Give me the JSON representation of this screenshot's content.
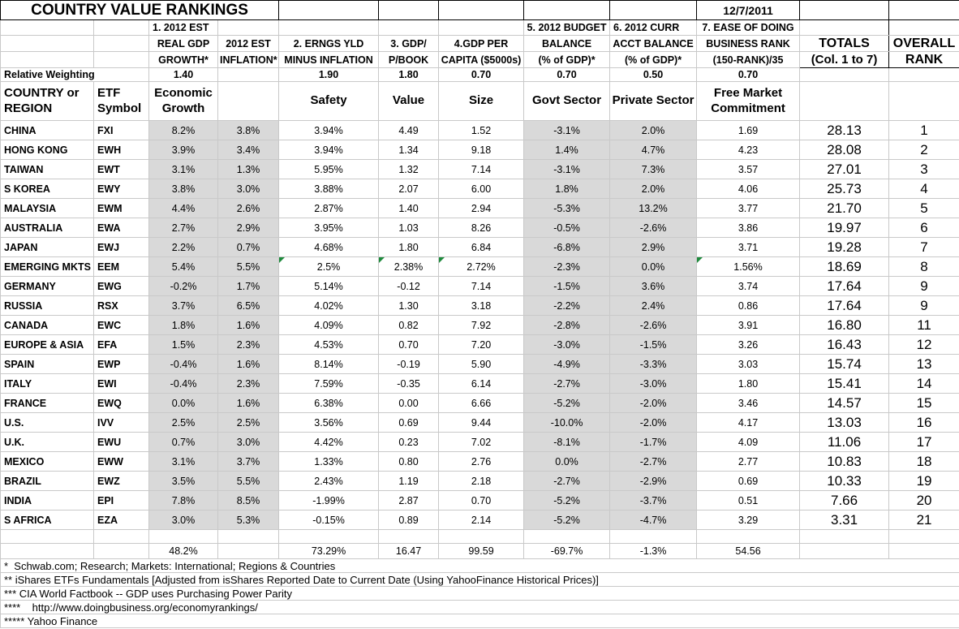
{
  "title": "COUNTRY VALUE RANKINGS",
  "date": "12/7/2011",
  "headers": {
    "group1": "1. 2012 EST",
    "group5": "5. 2012 BUDGET",
    "group6": "6. 2012 CURR",
    "group7": "7. EASE OF DOING",
    "line1": [
      "REAL GDP",
      "2012 EST",
      "2. ERNGS YLD",
      "3. GDP/",
      "4.GDP PER",
      "BALANCE",
      "ACCT BALANCE",
      "BUSINESS RANK",
      "TOTALS",
      "OVERALL"
    ],
    "line2": [
      "GROWTH*",
      "INFLATION*",
      "MINUS INFLATION",
      "P/BOOK",
      "CAPITA ($5000s)",
      "(% of GDP)*",
      "(% of GDP)*",
      "(150-RANK)/35",
      "(Col. 1 to 7)",
      "RANK"
    ]
  },
  "weights": {
    "label": "Relative Weighting",
    "values": [
      "1.40",
      "",
      "1.90",
      "1.80",
      "0.70",
      "0.70",
      "0.50",
      "0.70"
    ]
  },
  "categories": {
    "country": "COUNTRY or REGION",
    "etf": "ETF Symbol",
    "col1": "Economic Growth",
    "col2": "",
    "col3": "Safety",
    "col4": "Value",
    "col5": "Size",
    "col6": "Govt Sector",
    "col7": "Private Sector",
    "col8": "Free Market Commitment"
  },
  "rows": [
    {
      "country": "CHINA",
      "etf": "FXI",
      "values": [
        "8.2%",
        "3.8%",
        "3.94%",
        "4.49",
        "1.52",
        "-3.1%",
        "2.0%",
        "1.69"
      ],
      "total": "28.13",
      "rank": "1",
      "flags": []
    },
    {
      "country": "HONG KONG",
      "etf": "EWH",
      "values": [
        "3.9%",
        "3.4%",
        "3.94%",
        "1.34",
        "9.18",
        "1.4%",
        "4.7%",
        "4.23"
      ],
      "total": "28.08",
      "rank": "2",
      "flags": []
    },
    {
      "country": "TAIWAN",
      "etf": "EWT",
      "values": [
        "3.1%",
        "1.3%",
        "5.95%",
        "1.32",
        "7.14",
        "-3.1%",
        "7.3%",
        "3.57"
      ],
      "total": "27.01",
      "rank": "3",
      "flags": []
    },
    {
      "country": "S KOREA",
      "etf": "EWY",
      "values": [
        "3.8%",
        "3.0%",
        "3.88%",
        "2.07",
        "6.00",
        "1.8%",
        "2.0%",
        "4.06"
      ],
      "total": "25.73",
      "rank": "4",
      "flags": []
    },
    {
      "country": "MALAYSIA",
      "etf": "EWM",
      "values": [
        "4.4%",
        "2.6%",
        "2.87%",
        "1.40",
        "2.94",
        "-5.3%",
        "13.2%",
        "3.77"
      ],
      "total": "21.70",
      "rank": "5",
      "flags": []
    },
    {
      "country": "AUSTRALIA",
      "etf": "EWA",
      "values": [
        "2.7%",
        "2.9%",
        "3.95%",
        "1.03",
        "8.26",
        "-0.5%",
        "-2.6%",
        "3.86"
      ],
      "total": "19.97",
      "rank": "6",
      "flags": []
    },
    {
      "country": "JAPAN",
      "etf": "EWJ",
      "values": [
        "2.2%",
        "0.7%",
        "4.68%",
        "1.80",
        "6.84",
        "-6.8%",
        "2.9%",
        "3.71"
      ],
      "total": "19.28",
      "rank": "7",
      "flags": []
    },
    {
      "country": "EMERGING MKTS",
      "etf": "EEM",
      "values": [
        "5.4%",
        "5.5%",
        "2.5%",
        "2.38%",
        "2.72%",
        "-2.3%",
        "0.0%",
        "1.56%"
      ],
      "total": "18.69",
      "rank": "8",
      "flags": [
        2,
        3,
        4,
        7
      ]
    },
    {
      "country": "GERMANY",
      "etf": "EWG",
      "values": [
        "-0.2%",
        "1.7%",
        "5.14%",
        "-0.12",
        "7.14",
        "-1.5%",
        "3.6%",
        "3.74"
      ],
      "total": "17.64",
      "rank": "9",
      "flags": []
    },
    {
      "country": "RUSSIA",
      "etf": "RSX",
      "values": [
        "3.7%",
        "6.5%",
        "4.02%",
        "1.30",
        "3.18",
        "-2.2%",
        "2.4%",
        "0.86"
      ],
      "total": "17.64",
      "rank": "9",
      "flags": []
    },
    {
      "country": "CANADA",
      "etf": "EWC",
      "values": [
        "1.8%",
        "1.6%",
        "4.09%",
        "0.82",
        "7.92",
        "-2.8%",
        "-2.6%",
        "3.91"
      ],
      "total": "16.80",
      "rank": "11",
      "flags": []
    },
    {
      "country": "EUROPE & ASIA",
      "etf": "EFA",
      "values": [
        "1.5%",
        "2.3%",
        "4.53%",
        "0.70",
        "7.20",
        "-3.0%",
        "-1.5%",
        "3.26"
      ],
      "total": "16.43",
      "rank": "12",
      "flags": []
    },
    {
      "country": "SPAIN",
      "etf": "EWP",
      "values": [
        "-0.4%",
        "1.6%",
        "8.14%",
        "-0.19",
        "5.90",
        "-4.9%",
        "-3.3%",
        "3.03"
      ],
      "total": "15.74",
      "rank": "13",
      "flags": []
    },
    {
      "country": "ITALY",
      "etf": "EWI",
      "values": [
        "-0.4%",
        "2.3%",
        "7.59%",
        "-0.35",
        "6.14",
        "-2.7%",
        "-3.0%",
        "1.80"
      ],
      "total": "15.41",
      "rank": "14",
      "flags": []
    },
    {
      "country": "FRANCE",
      "etf": "EWQ",
      "values": [
        "0.0%",
        "1.6%",
        "6.38%",
        "0.00",
        "6.66",
        "-5.2%",
        "-2.0%",
        "3.46"
      ],
      "total": "14.57",
      "rank": "15",
      "flags": []
    },
    {
      "country": "U.S.",
      "etf": "IVV",
      "values": [
        "2.5%",
        "2.5%",
        "3.56%",
        "0.69",
        "9.44",
        "-10.0%",
        "-2.0%",
        "4.17"
      ],
      "total": "13.03",
      "rank": "16",
      "flags": []
    },
    {
      "country": "U.K.",
      "etf": "EWU",
      "values": [
        "0.7%",
        "3.0%",
        "4.42%",
        "0.23",
        "7.02",
        "-8.1%",
        "-1.7%",
        "4.09"
      ],
      "total": "11.06",
      "rank": "17",
      "flags": []
    },
    {
      "country": "MEXICO",
      "etf": "EWW",
      "values": [
        "3.1%",
        "3.7%",
        "1.33%",
        "0.80",
        "2.76",
        "0.0%",
        "-2.7%",
        "2.77"
      ],
      "total": "10.83",
      "rank": "18",
      "flags": []
    },
    {
      "country": "BRAZIL",
      "etf": "EWZ",
      "values": [
        "3.5%",
        "5.5%",
        "2.43%",
        "1.19",
        "2.18",
        "-2.7%",
        "-2.9%",
        "0.69"
      ],
      "total": "10.33",
      "rank": "19",
      "flags": []
    },
    {
      "country": "INDIA",
      "etf": "EPI",
      "values": [
        "7.8%",
        "8.5%",
        "-1.99%",
        "2.87",
        "0.70",
        "-5.2%",
        "-3.7%",
        "0.51"
      ],
      "total": "7.66",
      "rank": "20",
      "flags": []
    },
    {
      "country": "S AFRICA",
      "etf": "EZA",
      "values": [
        "3.0%",
        "5.3%",
        "-0.15%",
        "0.89",
        "2.14",
        "-5.2%",
        "-4.7%",
        "3.29"
      ],
      "total": "3.31",
      "rank": "21",
      "flags": []
    }
  ],
  "totals_row": {
    "values": [
      "48.2%",
      "",
      "73.29%",
      "16.47",
      "99.59",
      "-69.7%",
      "-1.3%",
      "54.56"
    ]
  },
  "footnotes": [
    "*  Schwab.com; Research; Markets: International; Regions & Countries",
    "** iShares ETFs Fundamentals [Adjusted from isShares Reported Date to Current Date (Using YahooFinance Historical Prices)]",
    "*** CIA World Factbook -- GDP uses Purchasing Power Parity",
    "****    http://www.doingbusiness.org/economyrankings/",
    "***** Yahoo Finance"
  ],
  "colors": {
    "shaded_column": "#d9d9d9",
    "gridline": "#c9c9c9",
    "flag_triangle": "#1e8a3c"
  },
  "icons": {
    "flag_triangle": "formula-flag-triangle-icon"
  }
}
